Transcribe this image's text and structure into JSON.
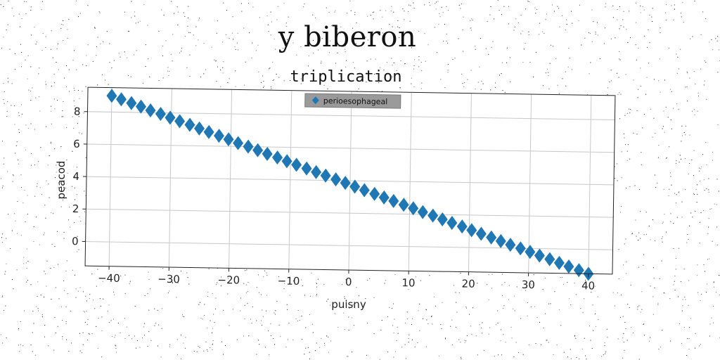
{
  "figure": {
    "suptitle": "y biberon"
  },
  "chart_data": {
    "type": "scatter",
    "title": "triplication",
    "xlabel": "puisny",
    "ylabel": "peacod",
    "xlim": [
      -44,
      44
    ],
    "ylim": [
      -1.5,
      9.5
    ],
    "xticks": [
      -40,
      -30,
      -20,
      -10,
      0,
      10,
      20,
      30,
      40
    ],
    "yticks": [
      0,
      2,
      4,
      6,
      8
    ],
    "xtick_labels": [
      "−40",
      "−30",
      "−20",
      "−10",
      "0",
      "10",
      "20",
      "30",
      "40"
    ],
    "ytick_labels": [
      "0",
      "2",
      "4",
      "6",
      "8"
    ],
    "grid": true,
    "legend": {
      "position": "top-center"
    },
    "series": [
      {
        "name": "perioesophageal",
        "marker": "diamond",
        "color": "#1f77b4",
        "x": [
          -40,
          -38.4,
          -36.7,
          -35.1,
          -33.5,
          -31.8,
          -30.2,
          -28.6,
          -26.9,
          -25.3,
          -23.7,
          -22.0,
          -20.4,
          -18.8,
          -17.1,
          -15.5,
          -13.9,
          -12.2,
          -10.6,
          -9.0,
          -7.3,
          -5.7,
          -4.1,
          -2.4,
          -0.8,
          0.8,
          2.4,
          4.1,
          5.7,
          7.3,
          9.0,
          10.6,
          12.2,
          13.9,
          15.5,
          17.1,
          18.8,
          20.4,
          22.0,
          23.7,
          25.3,
          26.9,
          28.6,
          30.2,
          31.8,
          33.5,
          35.1,
          36.7,
          38.4,
          40
        ],
        "y": [
          9.0,
          8.79,
          8.57,
          8.36,
          8.14,
          7.93,
          7.71,
          7.5,
          7.29,
          7.07,
          6.86,
          6.64,
          6.43,
          6.21,
          6.0,
          5.79,
          5.57,
          5.36,
          5.14,
          4.93,
          4.71,
          4.5,
          4.29,
          4.07,
          3.86,
          3.64,
          3.43,
          3.21,
          3.0,
          2.79,
          2.57,
          2.36,
          2.14,
          1.93,
          1.71,
          1.5,
          1.29,
          1.07,
          0.86,
          0.64,
          0.43,
          0.21,
          0.0,
          -0.21,
          -0.43,
          -0.64,
          -0.86,
          -1.07,
          -1.29,
          -1.5
        ]
      }
    ]
  }
}
